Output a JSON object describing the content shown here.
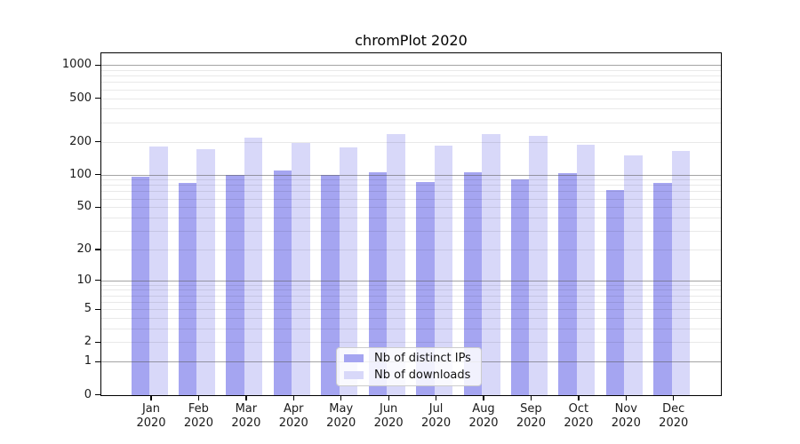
{
  "title": "chromPlot 2020",
  "chart_data": {
    "type": "bar",
    "title": "chromPlot 2020",
    "categories": [
      "Jan 2020",
      "Feb 2020",
      "Mar 2020",
      "Apr 2020",
      "May 2020",
      "Jun 2020",
      "Jul 2020",
      "Aug 2020",
      "Sep 2020",
      "Oct 2020",
      "Nov 2020",
      "Dec 2020"
    ],
    "series": [
      {
        "name": "Nb of distinct IPs",
        "color": "#a5a5f1",
        "values": [
          95,
          84,
          100,
          110,
          99,
          105,
          85,
          105,
          90,
          103,
          72,
          83
        ]
      },
      {
        "name": "Nb of downloads",
        "color": "#d8d8f9",
        "values": [
          182,
          171,
          219,
          196,
          177,
          234,
          184,
          236,
          228,
          187,
          151,
          164
        ]
      }
    ],
    "yscale": "log1p",
    "ylim": [
      0,
      1300
    ],
    "yticks": [
      0,
      1,
      2,
      5,
      10,
      20,
      50,
      100,
      200,
      500,
      1000
    ],
    "grid": "horizontal; dark major lines at 1,10,100,1000; light minor log lines",
    "legend_position": "bottom-center",
    "colors": {
      "major_grid": "#9a9a9a",
      "minor_grid": "#e9e9e9",
      "axis": "#000000",
      "text": "#1a1a1a",
      "legend_border": "#cccccc",
      "background": "#ffffff"
    }
  }
}
